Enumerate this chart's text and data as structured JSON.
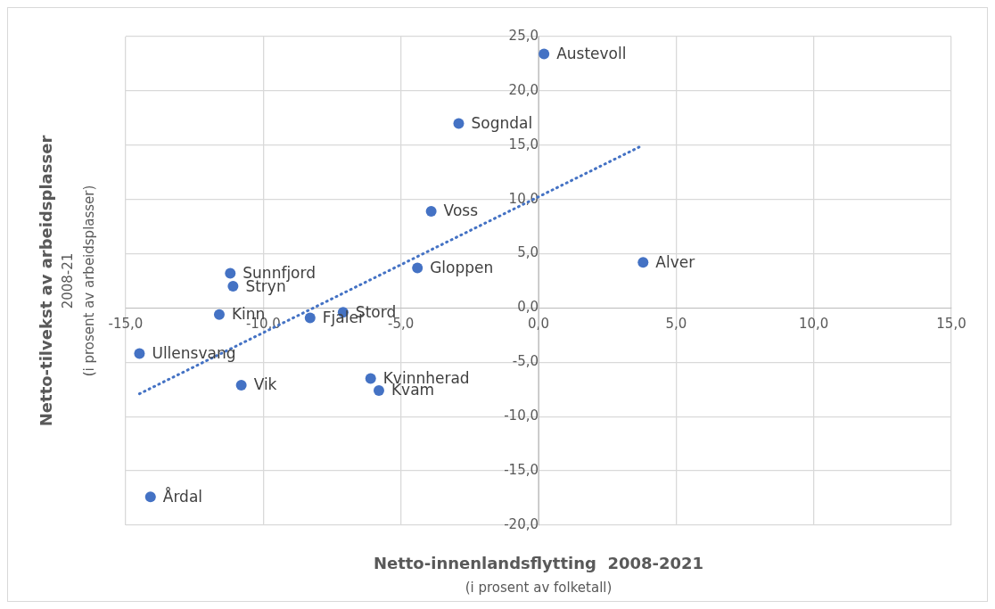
{
  "chart_data": {
    "type": "scatter",
    "xlabel": "Netto-innenlandsflytting  2008-2021\n(i prosent av folketall)",
    "ylabel": "Netto-tilvekst av arbeidsplasser\n2008-21\n(i prosent av arbeidsplasser)",
    "xlim": [
      -15,
      15
    ],
    "ylim": [
      -20,
      25
    ],
    "xticks": [
      {
        "value": -15,
        "label": "-15,0"
      },
      {
        "value": -10,
        "label": "-10,0"
      },
      {
        "value": -5,
        "label": "-5,0"
      },
      {
        "value": 0,
        "label": "0,0"
      },
      {
        "value": 5,
        "label": "5,0"
      },
      {
        "value": 10,
        "label": "10,0"
      },
      {
        "value": 15,
        "label": "15,0"
      }
    ],
    "yticks": [
      {
        "value": -20,
        "label": "-20,0"
      },
      {
        "value": -15,
        "label": "-15,0"
      },
      {
        "value": -10,
        "label": "-10,0"
      },
      {
        "value": -5,
        "label": "-5,0"
      },
      {
        "value": 0,
        "label": "0,0"
      },
      {
        "value": 5,
        "label": "5,0"
      },
      {
        "value": 10,
        "label": "10,0"
      },
      {
        "value": 15,
        "label": "15,0"
      },
      {
        "value": 20,
        "label": "20,0"
      },
      {
        "value": 25,
        "label": "25,0"
      }
    ],
    "grid": true,
    "marker": "circle",
    "series": [
      {
        "type": "scatter",
        "color": "#4472c4",
        "x": [
          0.2,
          -2.9,
          -3.9,
          -4.4,
          3.8,
          -11.2,
          -11.1,
          -11.6,
          -8.3,
          -7.1,
          -14.5,
          -10.8,
          -6.1,
          -5.8,
          -14.1
        ],
        "values": [
          23.4,
          17.0,
          8.9,
          3.7,
          4.2,
          3.2,
          2.0,
          -0.6,
          -0.9,
          -0.4,
          -4.2,
          -7.1,
          -6.5,
          -7.6,
          -17.4
        ],
        "value_labels": [
          "Austevoll",
          "Sogndal",
          "Voss",
          "Gloppen",
          "Alver",
          "Sunnfjord",
          "Stryn",
          "Kinn",
          "Fjaler",
          "Stord",
          "Ullensvang",
          "Vik",
          "Kvinnherad",
          "Kvam",
          "Årdal"
        ]
      },
      {
        "type": "line",
        "color": "#4472c4",
        "x": [
          -14.5,
          3.8
        ],
        "values": [
          -7.9,
          15.0
        ],
        "line_style": "dotted",
        "marker": "none"
      }
    ]
  }
}
